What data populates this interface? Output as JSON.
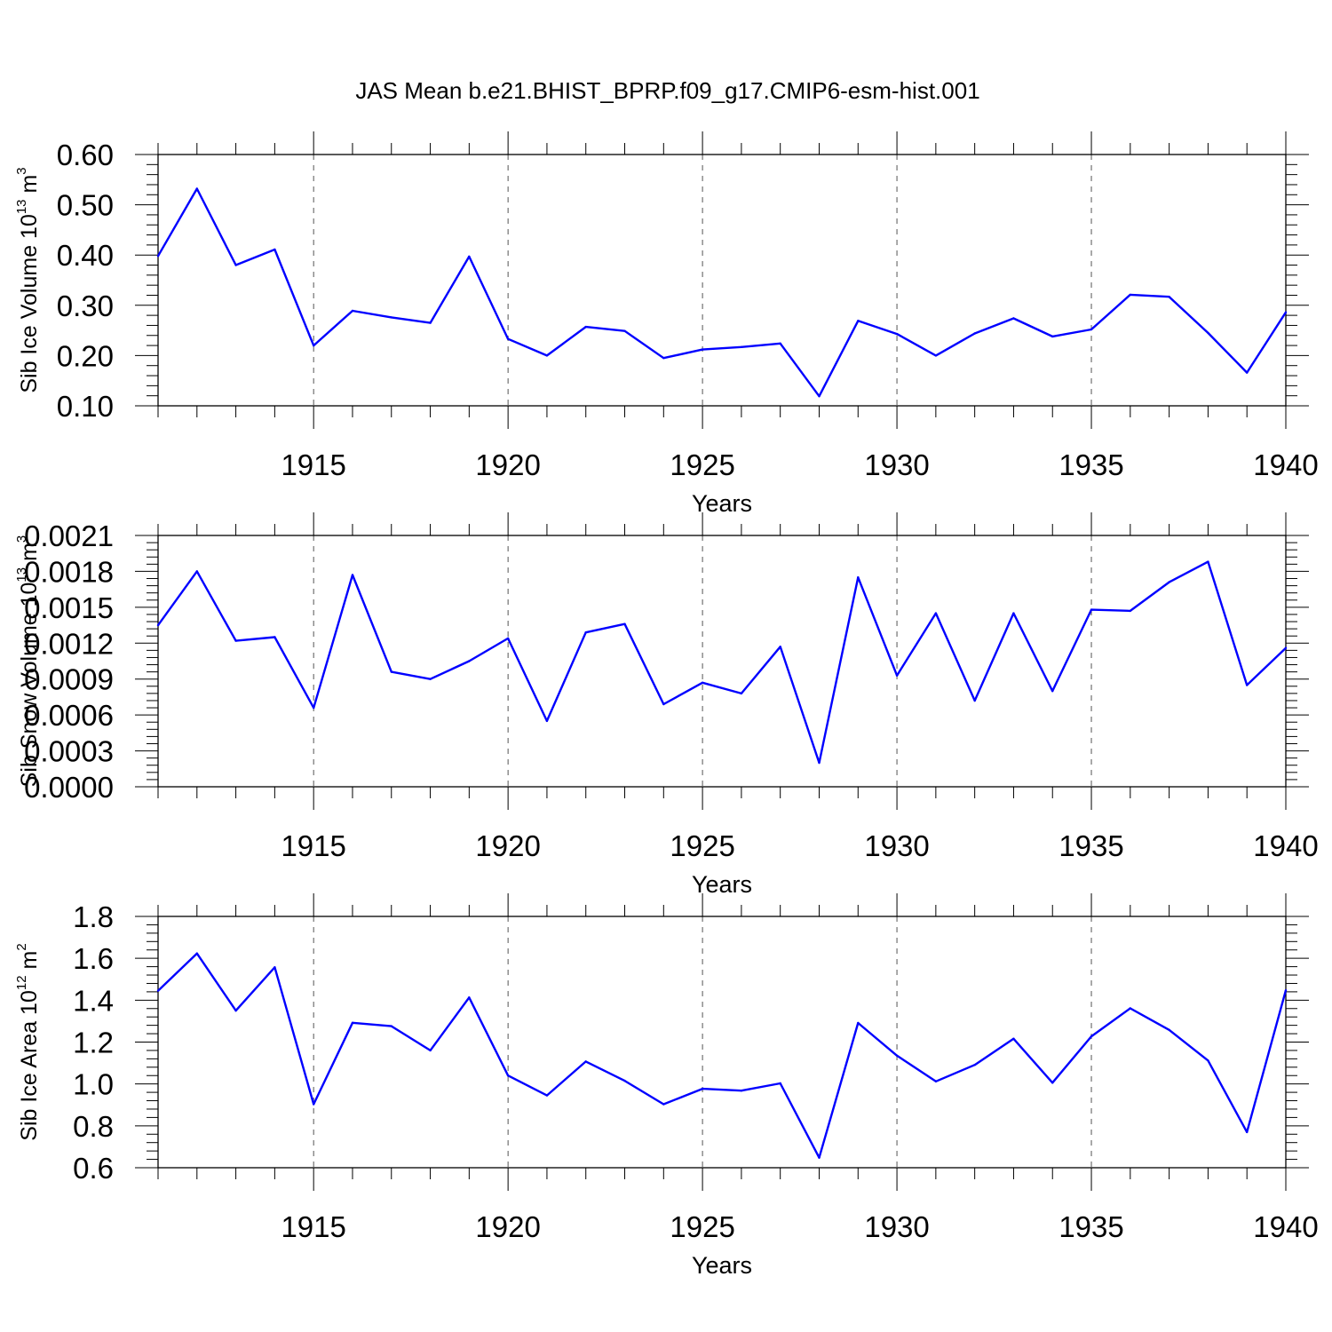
{
  "figure_title": "JAS Mean b.e21.BHIST_BPRP.f09_g17.CMIP6-esm-hist.001",
  "colors": {
    "line": "#0000ff",
    "axis": "#000000"
  },
  "chart_data": [
    {
      "type": "line",
      "title": "JAS Mean b.e21.BHIST_BPRP.f09_g17.CMIP6-esm-hist.001",
      "xlabel": "Years",
      "ylabel": {
        "prefix": "Sib Ice Volume 10",
        "exp1": "13",
        "mid": " m",
        "exp2": "3"
      },
      "xlim": [
        1911,
        1940
      ],
      "ylim": [
        0.1,
        0.6
      ],
      "x_ticks": [
        "1915",
        "1920",
        "1925",
        "1930",
        "1935",
        "1940"
      ],
      "y_ticks": [
        "0.10",
        "0.20",
        "0.30",
        "0.40",
        "0.50",
        "0.60"
      ],
      "x": [
        1911,
        1912,
        1913,
        1914,
        1915,
        1916,
        1917,
        1918,
        1919,
        1920,
        1921,
        1922,
        1923,
        1924,
        1925,
        1926,
        1927,
        1928,
        1929,
        1930,
        1931,
        1932,
        1933,
        1934,
        1935,
        1936,
        1937,
        1938,
        1939,
        1940
      ],
      "values": [
        0.398,
        0.532,
        0.38,
        0.411,
        0.22,
        0.289,
        0.276,
        0.265,
        0.397,
        0.233,
        0.2,
        0.257,
        0.249,
        0.195,
        0.212,
        0.217,
        0.224,
        0.119,
        0.269,
        0.243,
        0.2,
        0.244,
        0.274,
        0.238,
        0.252,
        0.321,
        0.317,
        0.245,
        0.166,
        0.286
      ]
    },
    {
      "type": "line",
      "xlabel": "Years",
      "ylabel": {
        "prefix": "Sib Snow Volume 10",
        "exp1": "13",
        "mid": " m",
        "exp2": "3"
      },
      "xlim": [
        1911,
        1940
      ],
      "ylim": [
        0.0,
        0.0021
      ],
      "x_ticks": [
        "1915",
        "1920",
        "1925",
        "1930",
        "1935",
        "1940"
      ],
      "y_ticks": [
        "0.0000",
        "0.0003",
        "0.0006",
        "0.0009",
        "0.0012",
        "0.0015",
        "0.0018",
        "0.0021"
      ],
      "x": [
        1911,
        1912,
        1913,
        1914,
        1915,
        1916,
        1917,
        1918,
        1919,
        1920,
        1921,
        1922,
        1923,
        1924,
        1925,
        1926,
        1927,
        1928,
        1929,
        1930,
        1931,
        1932,
        1933,
        1934,
        1935,
        1936,
        1937,
        1938,
        1939,
        1940
      ],
      "values": [
        0.00135,
        0.0018,
        0.00122,
        0.00125,
        0.00066,
        0.00177,
        0.00096,
        0.0009,
        0.00105,
        0.00124,
        0.00055,
        0.00129,
        0.00136,
        0.00069,
        0.00087,
        0.00078,
        0.00117,
        0.0002,
        0.00175,
        0.00093,
        0.00145,
        0.00072,
        0.00145,
        0.0008,
        0.00148,
        0.00147,
        0.00171,
        0.00188,
        0.00085,
        0.00116
      ]
    },
    {
      "type": "line",
      "xlabel": "Years",
      "ylabel": {
        "prefix": "Sib Ice Area 10",
        "exp1": "12",
        "mid": " m",
        "exp2": "2"
      },
      "xlim": [
        1911,
        1940
      ],
      "ylim": [
        0.6,
        1.8
      ],
      "x_ticks": [
        "1915",
        "1920",
        "1925",
        "1930",
        "1935",
        "1940"
      ],
      "y_ticks": [
        "0.6",
        "0.8",
        "1.0",
        "1.2",
        "1.4",
        "1.6",
        "1.8"
      ],
      "x": [
        1911,
        1912,
        1913,
        1914,
        1915,
        1916,
        1917,
        1918,
        1919,
        1920,
        1921,
        1922,
        1923,
        1924,
        1925,
        1926,
        1927,
        1928,
        1929,
        1930,
        1931,
        1932,
        1933,
        1934,
        1935,
        1936,
        1937,
        1938,
        1939,
        1940
      ],
      "values": [
        1.445,
        1.623,
        1.35,
        1.557,
        0.903,
        1.292,
        1.276,
        1.16,
        1.413,
        1.04,
        0.945,
        1.107,
        1.015,
        0.903,
        0.977,
        0.968,
        1.003,
        0.648,
        1.291,
        1.135,
        1.012,
        1.091,
        1.216,
        1.006,
        1.227,
        1.361,
        1.258,
        1.112,
        0.77,
        1.447
      ]
    }
  ]
}
